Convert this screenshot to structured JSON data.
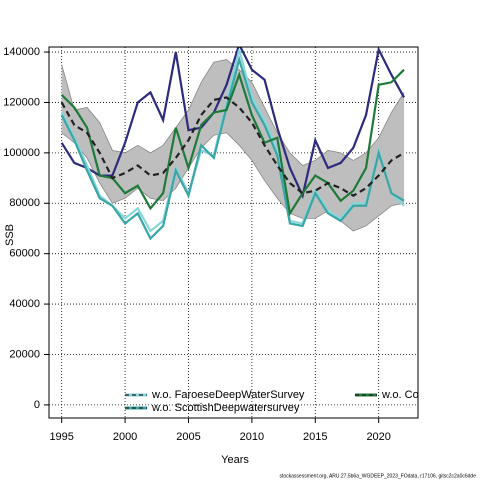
{
  "chart_data": {
    "type": "line",
    "xlabel": "Years",
    "ylabel": "SSB",
    "footnote": "stockassessment.org, ARU.27.5b6a_WGDEEP_2023_FOdata, r17106, gitsc2c2a0c6dde",
    "x": [
      1995,
      1996,
      1997,
      1998,
      1999,
      2000,
      2001,
      2002,
      2003,
      2004,
      2005,
      2006,
      2007,
      2008,
      2009,
      2010,
      2011,
      2012,
      2013,
      2014,
      2015,
      2016,
      2017,
      2018,
      2019,
      2020,
      2021,
      2022
    ],
    "xlim": [
      1994,
      2023.1
    ],
    "xticks": [
      1995,
      2000,
      2005,
      2010,
      2015,
      2020
    ],
    "ylim": [
      -5200,
      142000
    ],
    "yticks": [
      0,
      20000,
      40000,
      60000,
      80000,
      100000,
      120000,
      140000
    ],
    "grid": true,
    "band": {
      "color": "#bebebe",
      "upper": [
        135000,
        117000,
        118000,
        112000,
        101000,
        100000,
        103000,
        100000,
        103000,
        110000,
        117000,
        128000,
        136000,
        137000,
        133000,
        128000,
        118000,
        108000,
        100000,
        95000,
        97000,
        101000,
        100000,
        97000,
        100000,
        106000,
        116000,
        124000
      ],
      "lower": [
        108000,
        104000,
        98000,
        88000,
        80000,
        82000,
        86000,
        82000,
        81000,
        86000,
        94000,
        102000,
        107000,
        108000,
        103000,
        97000,
        89000,
        82000,
        76000,
        74000,
        74000,
        77000,
        73000,
        69000,
        71000,
        75000,
        79000,
        80000
      ]
    },
    "series": [
      {
        "color": "#2e2a7d",
        "values": [
          104000,
          96000,
          94000,
          91000,
          91000,
          104000,
          120000,
          124000,
          113000,
          140000,
          109000,
          110000,
          116000,
          127000,
          143000,
          133000,
          129000,
          110000,
          94000,
          83000,
          105000,
          94000,
          96000,
          102000,
          115000,
          141000,
          131000,
          122000
        ]
      },
      {
        "name": "w.o. FaroeseDeepWaterSurvey",
        "color": "#86d6da",
        "values": [
          116000,
          106000,
          95000,
          83000,
          79000,
          74000,
          78000,
          69000,
          73000,
          94000,
          84000,
          101000,
          99000,
          120000,
          141000,
          122000,
          113000,
          101000,
          73000,
          72000,
          85000,
          77000,
          74000,
          80000,
          80000,
          101000,
          84000,
          79000
        ]
      },
      {
        "name": "w.o. ScottishDeepwatersurvey",
        "color": "#3aa6a6",
        "values": [
          115000,
          105000,
          93000,
          82000,
          79000,
          72000,
          76000,
          66000,
          71000,
          93000,
          83000,
          103000,
          98000,
          118000,
          137000,
          120000,
          111000,
          99000,
          72000,
          71000,
          84000,
          76000,
          73000,
          79000,
          79000,
          100000,
          84000,
          81000
        ]
      },
      {
        "name": "w.o. Cor",
        "color": "#1f7a3a",
        "values": [
          123000,
          118000,
          110000,
          91000,
          90000,
          84000,
          87000,
          78000,
          84000,
          110000,
          94000,
          111000,
          116000,
          117000,
          131000,
          115000,
          104000,
          106000,
          76000,
          84000,
          91000,
          88000,
          81000,
          85000,
          94000,
          127000,
          128000,
          133000
        ]
      },
      {
        "color": "#222222",
        "dashed": true,
        "values": [
          120000,
          111000,
          108000,
          100000,
          90000,
          92000,
          95000,
          91000,
          92000,
          98000,
          105000,
          115000,
          121000,
          122000,
          118000,
          112000,
          103000,
          95000,
          88000,
          84000,
          85000,
          88000,
          86000,
          83000,
          86000,
          91000,
          97000,
          100000
        ]
      }
    ]
  }
}
